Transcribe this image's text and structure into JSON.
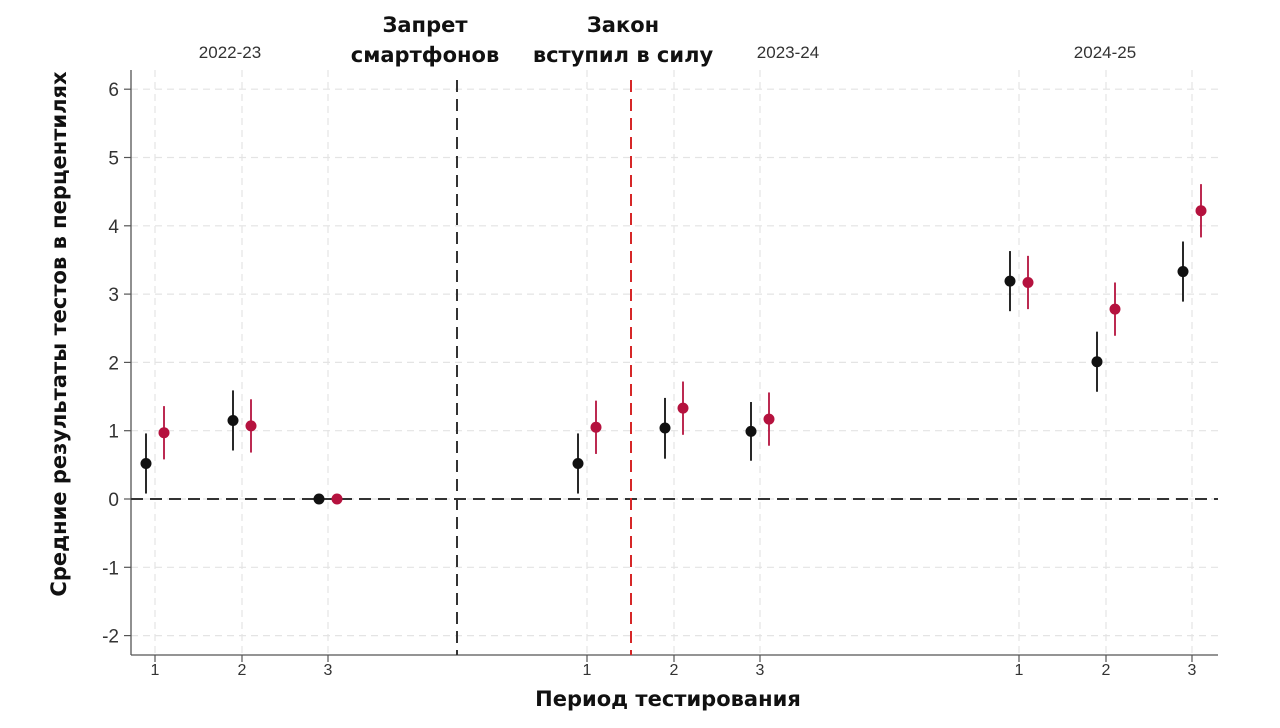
{
  "chart_data": {
    "type": "scatter",
    "title": "",
    "xlabel": "Период тестирования",
    "ylabel": "Средние результаты тестов в перцентилях",
    "ylim": [
      -2.2,
      6.2
    ],
    "yticks": [
      -2,
      -1,
      0,
      1,
      2,
      3,
      4,
      5,
      6
    ],
    "grid": true,
    "legend": "none",
    "colors": {
      "series_a": "#111111",
      "series_b": "#b5123e",
      "ban_line": "#333333",
      "law_line": "#d62728",
      "zero_line": "#333333"
    },
    "periods": [
      {
        "label": "2022-23",
        "ticks": [
          "1",
          "2",
          "3"
        ]
      },
      {
        "label": "2023-24",
        "ticks": [
          "1",
          "2",
          "3"
        ]
      },
      {
        "label": "2024-25",
        "ticks": [
          "1",
          "2",
          "3"
        ]
      }
    ],
    "annotations": [
      {
        "text_lines": [
          "Запрет",
          "смартфонов"
        ],
        "position": "between 2022-23 and 2023-24"
      },
      {
        "text_lines": [
          "Закон",
          "вступил в силу"
        ],
        "position": "between 2023-24 period 1 and 2"
      }
    ],
    "series": [
      {
        "color": "#111111",
        "points": [
          {
            "period": "2022-23",
            "test": 1,
            "y": 0.52,
            "lo": 0.08,
            "hi": 0.96
          },
          {
            "period": "2022-23",
            "test": 2,
            "y": 1.15,
            "lo": 0.71,
            "hi": 1.59
          },
          {
            "period": "2022-23",
            "test": 3,
            "y": 0.0,
            "lo": 0.0,
            "hi": 0.0
          },
          {
            "period": "2023-24",
            "test": 1,
            "y": 0.52,
            "lo": 0.08,
            "hi": 0.96
          },
          {
            "period": "2023-24",
            "test": 2,
            "y": 1.04,
            "lo": 0.59,
            "hi": 1.48
          },
          {
            "period": "2023-24",
            "test": 3,
            "y": 0.99,
            "lo": 0.56,
            "hi": 1.42
          },
          {
            "period": "2024-25",
            "test": 1,
            "y": 3.19,
            "lo": 2.75,
            "hi": 3.63
          },
          {
            "period": "2024-25",
            "test": 2,
            "y": 2.01,
            "lo": 1.57,
            "hi": 2.45
          },
          {
            "period": "2024-25",
            "test": 3,
            "y": 3.33,
            "lo": 2.89,
            "hi": 3.77
          }
        ]
      },
      {
        "color": "#b5123e",
        "points": [
          {
            "period": "2022-23",
            "test": 1,
            "y": 0.97,
            "lo": 0.58,
            "hi": 1.36
          },
          {
            "period": "2022-23",
            "test": 2,
            "y": 1.07,
            "lo": 0.68,
            "hi": 1.46
          },
          {
            "period": "2022-23",
            "test": 3,
            "y": 0.0,
            "lo": 0.0,
            "hi": 0.0
          },
          {
            "period": "2023-24",
            "test": 1,
            "y": 1.05,
            "lo": 0.66,
            "hi": 1.44
          },
          {
            "period": "2023-24",
            "test": 2,
            "y": 1.33,
            "lo": 0.94,
            "hi": 1.72
          },
          {
            "period": "2023-24",
            "test": 3,
            "y": 1.17,
            "lo": 0.78,
            "hi": 1.56
          },
          {
            "period": "2024-25",
            "test": 1,
            "y": 3.17,
            "lo": 2.78,
            "hi": 3.56
          },
          {
            "period": "2024-25",
            "test": 2,
            "y": 2.78,
            "lo": 2.39,
            "hi": 3.17
          },
          {
            "period": "2024-25",
            "test": 3,
            "y": 4.22,
            "lo": 3.83,
            "hi": 4.61
          }
        ]
      }
    ]
  }
}
